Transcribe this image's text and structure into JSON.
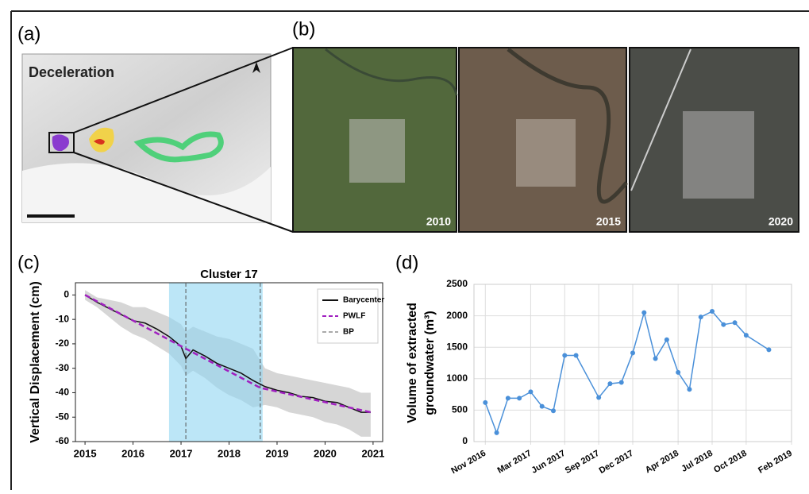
{
  "panels": {
    "a": {
      "label": "(a)",
      "title": "Deceleration"
    },
    "b": {
      "label": "(b)",
      "years": [
        "2010",
        "2015",
        "2020"
      ]
    }
  },
  "chart_data": [
    {
      "type": "line",
      "label": "(c)",
      "title": "Cluster 17",
      "ylabel": "Vertical Displacement (cm)",
      "xlim": [
        2014.8,
        2021.2
      ],
      "xticks": [
        2015,
        2016,
        2017,
        2018,
        2019,
        2020,
        2021
      ],
      "ylim": [
        -60,
        5
      ],
      "yticks": [
        0,
        -10,
        -20,
        -30,
        -40,
        -50,
        -60
      ],
      "grid": false,
      "legend": "upper right",
      "span": [
        2016.75,
        2018.7
      ],
      "span_color": "#8fd6f2",
      "band": {
        "color": "#c8c8c8",
        "x": [
          2015,
          2015.25,
          2015.5,
          2015.75,
          2016,
          2016.25,
          2016.5,
          2016.75,
          2017,
          2017.1,
          2017.25,
          2017.5,
          2017.75,
          2018,
          2018.25,
          2018.5,
          2018.75,
          2019,
          2019.25,
          2019.5,
          2019.75,
          2020,
          2020.25,
          2020.5,
          2020.75,
          2020.95
        ],
        "upper": [
          2,
          -1,
          -2,
          -3,
          -5,
          -5,
          -7,
          -9,
          -12,
          -15,
          -13,
          -15,
          -17,
          -18,
          -20,
          -22,
          -30,
          -32,
          -33,
          -34,
          -35,
          -36,
          -37,
          -38,
          -40,
          -40
        ],
        "lower": [
          -2,
          -5,
          -9,
          -13,
          -16,
          -18,
          -21,
          -24,
          -29,
          -33,
          -31,
          -34,
          -38,
          -41,
          -43,
          -46,
          -45,
          -46,
          -48,
          -49,
          -50,
          -52,
          -53,
          -55,
          -58,
          -58
        ]
      },
      "series": [
        {
          "name": "Barycenter",
          "color": "#111111",
          "dash": false,
          "x": [
            2015,
            2015.25,
            2015.5,
            2015.75,
            2016,
            2016.25,
            2016.5,
            2016.75,
            2017,
            2017.1,
            2017.25,
            2017.5,
            2017.75,
            2018,
            2018.25,
            2018.5,
            2018.75,
            2019,
            2019.25,
            2019.5,
            2019.75,
            2020,
            2020.25,
            2020.5,
            2020.75,
            2020.95
          ],
          "values": [
            0,
            -3,
            -5.5,
            -8,
            -10.5,
            -11.5,
            -14,
            -17,
            -21,
            -26,
            -22.5,
            -25,
            -28,
            -30,
            -32,
            -35,
            -37.5,
            -39,
            -40,
            -41.5,
            -42,
            -43.5,
            -44,
            -46,
            -48,
            -48
          ]
        },
        {
          "name": "PWLF",
          "color": "#a020c0",
          "dash": true,
          "x": [
            2015,
            2017.1,
            2018.65,
            2020.95
          ],
          "values": [
            0,
            -22,
            -38,
            -48
          ]
        }
      ],
      "breakpoints": {
        "name": "BP",
        "color": "#555555",
        "x": [
          2017.1,
          2018.65
        ]
      }
    },
    {
      "type": "line",
      "label": "(d)",
      "ylabel": [
        "Volume of extracted",
        "groundwater (m³)"
      ],
      "xlim": [
        "2016-10",
        "2019-02"
      ],
      "xticks": [
        {
          "value": "2016-11",
          "label": "Nov 2016"
        },
        {
          "value": "2017-03",
          "label": "Mar 2017"
        },
        {
          "value": "2017-06",
          "label": "Jun 2017"
        },
        {
          "value": "2017-09",
          "label": "Sep 2017"
        },
        {
          "value": "2017-12",
          "label": "Dec 2017"
        },
        {
          "value": "2018-04",
          "label": "Apr 2018"
        },
        {
          "value": "2018-07",
          "label": "Jul 2018"
        },
        {
          "value": "2018-10",
          "label": "Oct 2018"
        },
        {
          "value": "2019-02",
          "label": "Feb 2019"
        }
      ],
      "ylim": [
        0,
        2500
      ],
      "yticks": [
        0,
        500,
        1000,
        1500,
        2000,
        2500
      ],
      "grid": true,
      "series": [
        {
          "color": "#4a90d9",
          "dash": false,
          "x": [
            "2016-11",
            "2016-12",
            "2017-01",
            "2017-02",
            "2017-03",
            "2017-04",
            "2017-05",
            "2017-06",
            "2017-07",
            "2017-09",
            "2017-10",
            "2017-11",
            "2017-12",
            "2018-01",
            "2018-02",
            "2018-03",
            "2018-04",
            "2018-05",
            "2018-06",
            "2018-07",
            "2018-08",
            "2018-09",
            "2018-10",
            "2018-12"
          ],
          "values": [
            620,
            140,
            690,
            690,
            790,
            560,
            490,
            1370,
            1370,
            700,
            920,
            940,
            1410,
            2050,
            1320,
            1620,
            1100,
            830,
            1980,
            2070,
            1860,
            1890,
            1690,
            1460
          ]
        }
      ]
    }
  ]
}
